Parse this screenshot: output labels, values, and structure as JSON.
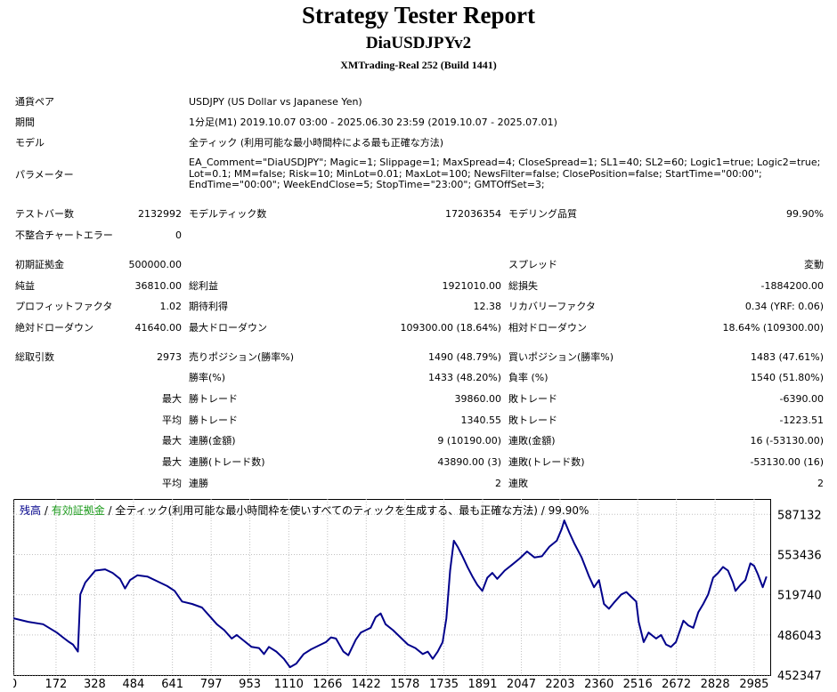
{
  "header": {
    "title": "Strategy Tester Report",
    "subtitle": "DiaUSDJPYv2",
    "server": "XMTrading-Real 252 (Build 1441)"
  },
  "info": {
    "symbol_label": "通貨ペア",
    "symbol_value": "USDJPY (US Dollar vs Japanese Yen)",
    "period_label": "期間",
    "period_value": "1分足(M1) 2019.10.07 03:00 - 2025.06.30 23:59 (2019.10.07 - 2025.07.01)",
    "model_label": "モデル",
    "model_value": "全ティック (利用可能な最小時間枠による最も正確な方法)",
    "params_label": "パラメーター",
    "params_value": "EA_Comment=\"DiaUSDJPY\"; Magic=1; Slippage=1; MaxSpread=4; CloseSpread=1; SL1=40; SL2=60; Logic1=true; Logic2=true; Lot=0.1; MM=false; Risk=10; MinLot=0.01; MaxLot=100; NewsFilter=false; ClosePosition=false; StartTime=\"00:00\"; EndTime=\"00:00\"; WeekEndClose=5; StopTime=\"23:00\"; GMTOffSet=3;"
  },
  "stats": {
    "bars_label": "テストバー数",
    "bars_value": "2132992",
    "ticks_label": "モデルティック数",
    "ticks_value": "172036354",
    "quality_label": "モデリング品質",
    "quality_value": "99.90%",
    "mismatch_label": "不整合チャートエラー",
    "mismatch_value": "0",
    "deposit_label": "初期証拠金",
    "deposit_value": "500000.00",
    "spread_label": "スプレッド",
    "spread_value": "変動",
    "net_label": "純益",
    "net_value": "36810.00",
    "gross_profit_label": "総利益",
    "gross_profit_value": "1921010.00",
    "gross_loss_label": "総損失",
    "gross_loss_value": "-1884200.00",
    "pf_label": "プロフィットファクタ",
    "pf_value": "1.02",
    "expected_label": "期待利得",
    "expected_value": "12.38",
    "recovery_label": "リカバリーファクタ",
    "recovery_value": "0.34 (YRF: 0.06)",
    "abs_dd_label": "絶対ドローダウン",
    "abs_dd_value": "41640.00",
    "max_dd_label": "最大ドローダウン",
    "max_dd_value": "109300.00 (18.64%)",
    "rel_dd_label": "相対ドローダウン",
    "rel_dd_value": "18.64% (109300.00)",
    "trades_label": "総取引数",
    "trades_value": "2973",
    "short_label": "売りポジション(勝率%)",
    "short_value": "1490 (48.79%)",
    "long_label": "買いポジション(勝率%)",
    "long_value": "1483 (47.61%)",
    "win_rate_label": "勝率(%)",
    "win_rate_value": "1433 (48.20%)",
    "loss_rate_label": "負率 (%)",
    "loss_rate_value": "1540 (51.80%)",
    "max_label": "最大",
    "avg_label": "平均",
    "largest_win_label": "勝トレード",
    "largest_win_value": "39860.00",
    "largest_loss_label": "敗トレード",
    "largest_loss_value": "-6390.00",
    "avg_win_label": "勝トレード",
    "avg_win_value": "1340.55",
    "avg_loss_label": "敗トレード",
    "avg_loss_value": "-1223.51",
    "max_consec_win_amt_label": "連勝(金額)",
    "max_consec_win_amt_value": "9 (10190.00)",
    "max_consec_loss_amt_label": "連敗(金額)",
    "max_consec_loss_amt_value": "16 (-53130.00)",
    "max_consec_win_cnt_label": "連勝(トレード数)",
    "max_consec_win_cnt_value": "43890.00 (3)",
    "max_consec_loss_cnt_label": "連敗(トレード数)",
    "max_consec_loss_cnt_value": "-53130.00 (16)",
    "avg_consec_win_label": "連勝",
    "avg_consec_win_value": "2",
    "avg_consec_loss_label": "連敗",
    "avg_consec_loss_value": "2"
  },
  "chart_legend": {
    "balance": "残高",
    "sep1": " / ",
    "equity": "有効証拠金",
    "rest": " / 全ティック(利用可能な最小時間枠を使いすべてのティックを生成する、最も正確な方法) / 99.90%"
  },
  "colors": {
    "line": "#00008b",
    "grid": "#c0c0c0",
    "legend_balance": "#00008b",
    "legend_equity": "#1a9a1a"
  },
  "chart_data": {
    "type": "line",
    "xlabel": "",
    "ylabel": "",
    "x_ticks": [
      0,
      172,
      328,
      484,
      641,
      797,
      953,
      1110,
      1266,
      1422,
      1578,
      1735,
      1891,
      2047,
      2203,
      2360,
      2516,
      2672,
      2828,
      2985
    ],
    "y_ticks": [
      452347,
      486043,
      519740,
      553436,
      587132
    ],
    "xlim": [
      0,
      3050
    ],
    "ylim": [
      452347,
      600000
    ],
    "series": [
      {
        "values": [
          [
            0,
            500000
          ],
          [
            60,
            497000
          ],
          [
            120,
            495000
          ],
          [
            175,
            488000
          ],
          [
            200,
            484000
          ],
          [
            225,
            480000
          ],
          [
            240,
            478000
          ],
          [
            260,
            472000
          ],
          [
            270,
            520000
          ],
          [
            290,
            530000
          ],
          [
            330,
            540000
          ],
          [
            370,
            541000
          ],
          [
            400,
            538000
          ],
          [
            430,
            533000
          ],
          [
            450,
            525000
          ],
          [
            470,
            532000
          ],
          [
            500,
            536000
          ],
          [
            540,
            535000
          ],
          [
            580,
            531000
          ],
          [
            620,
            527000
          ],
          [
            650,
            523000
          ],
          [
            680,
            514000
          ],
          [
            720,
            512000
          ],
          [
            760,
            509000
          ],
          [
            790,
            502000
          ],
          [
            820,
            495000
          ],
          [
            850,
            490000
          ],
          [
            880,
            483000
          ],
          [
            900,
            486000
          ],
          [
            930,
            481000
          ],
          [
            960,
            476000
          ],
          [
            990,
            475000
          ],
          [
            1010,
            470000
          ],
          [
            1030,
            476000
          ],
          [
            1060,
            472000
          ],
          [
            1090,
            466000
          ],
          [
            1115,
            459000
          ],
          [
            1140,
            462000
          ],
          [
            1170,
            470000
          ],
          [
            1200,
            474000
          ],
          [
            1230,
            477000
          ],
          [
            1260,
            480000
          ],
          [
            1280,
            484000
          ],
          [
            1300,
            483000
          ],
          [
            1330,
            472000
          ],
          [
            1350,
            469000
          ],
          [
            1380,
            482000
          ],
          [
            1400,
            488000
          ],
          [
            1420,
            490000
          ],
          [
            1440,
            492000
          ],
          [
            1460,
            501000
          ],
          [
            1480,
            504000
          ],
          [
            1500,
            495000
          ],
          [
            1530,
            490000
          ],
          [
            1560,
            484000
          ],
          [
            1590,
            478000
          ],
          [
            1620,
            475000
          ],
          [
            1650,
            470000
          ],
          [
            1670,
            472000
          ],
          [
            1690,
            466000
          ],
          [
            1710,
            472000
          ],
          [
            1730,
            480000
          ],
          [
            1745,
            500000
          ],
          [
            1760,
            540000
          ],
          [
            1775,
            565000
          ],
          [
            1790,
            560000
          ],
          [
            1810,
            552000
          ],
          [
            1830,
            543000
          ],
          [
            1850,
            535000
          ],
          [
            1870,
            528000
          ],
          [
            1890,
            523000
          ],
          [
            1910,
            534000
          ],
          [
            1930,
            538000
          ],
          [
            1950,
            533000
          ],
          [
            1980,
            540000
          ],
          [
            2010,
            545000
          ],
          [
            2040,
            550000
          ],
          [
            2070,
            556000
          ],
          [
            2100,
            551000
          ],
          [
            2130,
            552000
          ],
          [
            2160,
            560000
          ],
          [
            2190,
            565000
          ],
          [
            2210,
            575000
          ],
          [
            2220,
            582000
          ],
          [
            2240,
            572000
          ],
          [
            2260,
            563000
          ],
          [
            2290,
            551000
          ],
          [
            2320,
            535000
          ],
          [
            2340,
            526000
          ],
          [
            2360,
            532000
          ],
          [
            2380,
            512000
          ],
          [
            2400,
            508000
          ],
          [
            2420,
            513000
          ],
          [
            2450,
            520000
          ],
          [
            2470,
            522000
          ],
          [
            2490,
            518000
          ],
          [
            2510,
            514000
          ],
          [
            2520,
            497000
          ],
          [
            2540,
            480000
          ],
          [
            2560,
            488000
          ],
          [
            2590,
            483000
          ],
          [
            2610,
            486000
          ],
          [
            2630,
            478000
          ],
          [
            2650,
            476000
          ],
          [
            2670,
            480000
          ],
          [
            2700,
            498000
          ],
          [
            2720,
            494000
          ],
          [
            2740,
            492000
          ],
          [
            2760,
            505000
          ],
          [
            2780,
            512000
          ],
          [
            2800,
            520000
          ],
          [
            2820,
            534000
          ],
          [
            2840,
            538000
          ],
          [
            2860,
            543000
          ],
          [
            2880,
            540000
          ],
          [
            2900,
            530000
          ],
          [
            2910,
            523000
          ],
          [
            2930,
            528000
          ],
          [
            2950,
            532000
          ],
          [
            2970,
            546000
          ],
          [
            2985,
            544000
          ],
          [
            3000,
            537000
          ],
          [
            3020,
            526000
          ],
          [
            3035,
            535000
          ]
        ]
      }
    ]
  }
}
